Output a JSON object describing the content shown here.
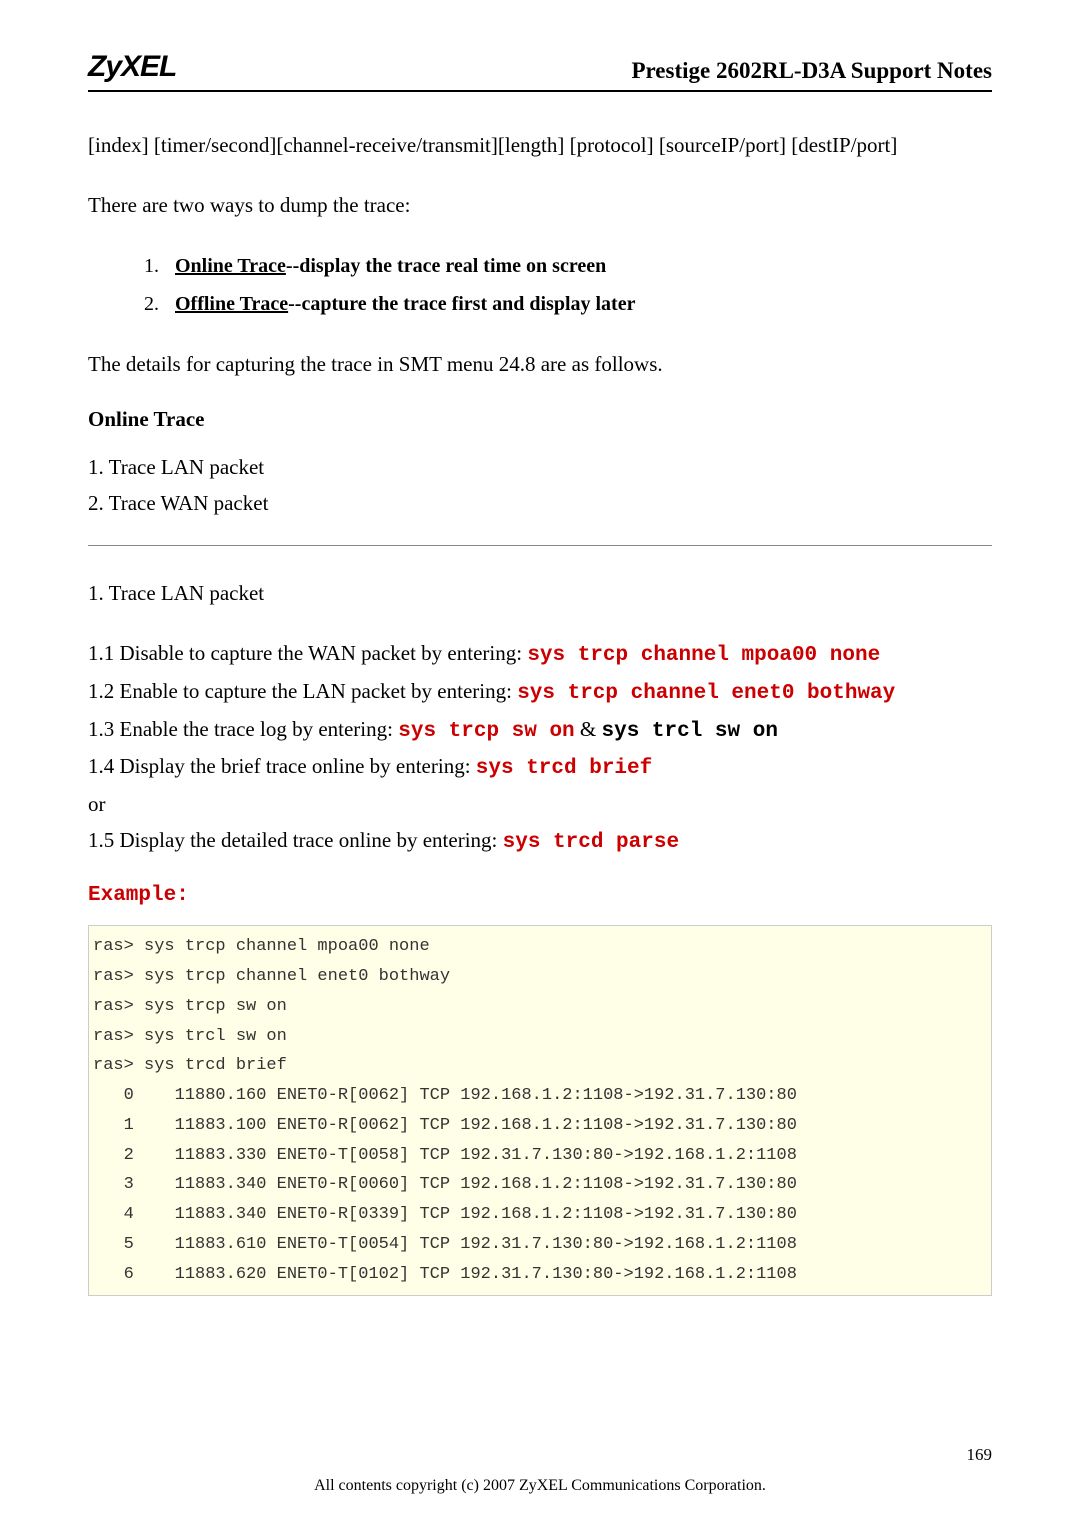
{
  "header": {
    "logo": "ZyXEL",
    "title": "Prestige 2602RL-D3A Support Notes"
  },
  "intro": {
    "format_line": "[index] [timer/second][channel-receive/transmit][length]  [protocol] [sourceIP/port] [destIP/port]",
    "dump_intro": "There are two ways to dump the trace:"
  },
  "trace_options": [
    {
      "num": "1.",
      "ul": "Online Trace",
      "rest": "--display the trace real time on screen"
    },
    {
      "num": "2.",
      "ul": "Offline Trace",
      "rest": "--capture the trace first and display later"
    }
  ],
  "details_para": "The details for capturing the trace in SMT menu 24.8 are as follows.",
  "online_trace_heading": "Online Trace",
  "online_steps": {
    "s1": "1. Trace LAN packet",
    "s2": "2. Trace WAN packet"
  },
  "lan_heading": "1. Trace LAN packet",
  "lan_steps": {
    "l1_pre": "1.1 Disable to capture the WAN packet by entering: ",
    "l1_cmd": "sys trcp channel mpoa00 none",
    "l2_pre": "1.2 Enable to capture the LAN packet by entering: ",
    "l2_cmd": "sys trcp channel enet0 bothway",
    "l3_pre": "1.3 Enable the trace log by entering: ",
    "l3_cmd1": "sys trcp sw on",
    "l3_amp": " & ",
    "l3_cmd2": "sys trcl sw on",
    "l4_pre": "1.4 Display the brief trace online by entering: ",
    "l4_cmd": "sys trcd brief",
    "or_text": "or",
    "l5_pre": "1.5 Display the detailed trace online by entering: ",
    "l5_cmd": "sys trcd parse"
  },
  "example_label": "Example:",
  "terminal_lines": [
    "ras> sys trcp channel mpoa00 none",
    "ras> sys trcp channel enet0 bothway",
    "ras> sys trcp sw on",
    "ras> sys trcl sw on",
    "ras> sys trcd brief",
    "   0    11880.160 ENET0-R[0062] TCP 192.168.1.2:1108->192.31.7.130:80",
    "   1    11883.100 ENET0-R[0062] TCP 192.168.1.2:1108->192.31.7.130:80",
    "   2    11883.330 ENET0-T[0058] TCP 192.31.7.130:80->192.168.1.2:1108",
    "   3    11883.340 ENET0-R[0060] TCP 192.168.1.2:1108->192.31.7.130:80",
    "   4    11883.340 ENET0-R[0339] TCP 192.168.1.2:1108->192.31.7.130:80",
    "   5    11883.610 ENET0-T[0054] TCP 192.31.7.130:80->192.168.1.2:1108",
    "   6    11883.620 ENET0-T[0102] TCP 192.31.7.130:80->192.168.1.2:1108"
  ],
  "footer": {
    "copyright": "All contents copyright (c) 2007 ZyXEL Communications Corporation.",
    "page": "169"
  },
  "colors": {
    "cmd_red": "#cc0000",
    "terminal_bg": "#feffe6",
    "terminal_border": "#cccccc",
    "text": "#000000"
  },
  "fonts": {
    "body": "Times New Roman",
    "mono": "Courier New",
    "body_size_pt": 16,
    "mono_size_pt": 13
  }
}
